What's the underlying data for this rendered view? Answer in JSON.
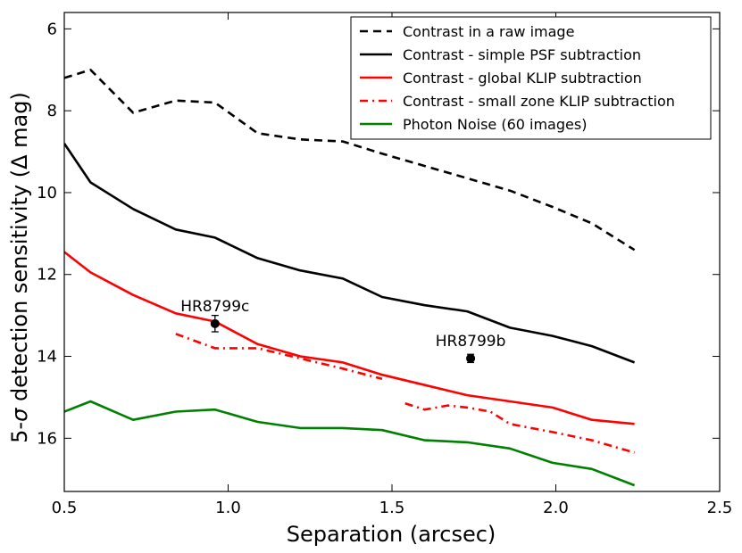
{
  "chart_data": {
    "type": "line",
    "title": "",
    "xlabel": "Separation (arcsec)",
    "ylabel_parts": [
      "5-",
      "σ",
      " detection sensitivity (",
      "Δ",
      " mag)"
    ],
    "xlim": [
      0.5,
      2.5
    ],
    "ylim": [
      17.3,
      5.6
    ],
    "y_inverted": true,
    "xticks": [
      0.5,
      1.0,
      1.5,
      2.0,
      2.5
    ],
    "xtick_labels": [
      "0.5",
      "1.0",
      "1.5",
      "2.0",
      "2.5"
    ],
    "yticks": [
      6,
      8,
      10,
      12,
      14,
      16
    ],
    "ytick_labels": [
      "6",
      "8",
      "10",
      "12",
      "14",
      "16"
    ],
    "grid": false,
    "legend_position": "top-right",
    "series": [
      {
        "name": "Contrast in a raw image",
        "color": "#000000",
        "style": "dashed",
        "segments": [
          {
            "x": [
              0.5,
              0.58,
              0.71,
              0.84,
              0.96,
              1.09,
              1.22,
              1.35,
              1.47,
              1.6,
              1.73,
              1.86,
              1.99,
              2.11,
              2.24
            ],
            "y": [
              7.2,
              7.0,
              8.05,
              7.75,
              7.8,
              8.55,
              8.7,
              8.75,
              9.05,
              9.35,
              9.65,
              9.95,
              10.35,
              10.75,
              11.4
            ]
          }
        ]
      },
      {
        "name": "Contrast - simple PSF subtraction",
        "color": "#000000",
        "style": "solid",
        "segments": [
          {
            "x": [
              0.5,
              0.58,
              0.71,
              0.84,
              0.96,
              1.09,
              1.22,
              1.35,
              1.47,
              1.6,
              1.73,
              1.86,
              1.99,
              2.11,
              2.24
            ],
            "y": [
              8.8,
              9.75,
              10.4,
              10.9,
              11.1,
              11.6,
              11.9,
              12.1,
              12.55,
              12.75,
              12.9,
              13.3,
              13.5,
              13.75,
              14.15
            ]
          }
        ]
      },
      {
        "name": "Contrast - global KLIP subtraction",
        "color": "#ff0000",
        "style": "solid",
        "segments": [
          {
            "x": [
              0.5,
              0.58,
              0.71,
              0.84,
              0.96,
              1.09,
              1.22,
              1.35,
              1.47,
              1.6,
              1.73,
              1.86,
              1.99,
              2.11,
              2.24
            ],
            "y": [
              11.45,
              11.95,
              12.5,
              12.95,
              13.15,
              13.7,
              14.0,
              14.15,
              14.45,
              14.7,
              14.95,
              15.1,
              15.25,
              15.55,
              15.65
            ]
          }
        ]
      },
      {
        "name": "Contrast - small zone KLIP subtraction",
        "color": "#ff0000",
        "style": "dashdot",
        "segments": [
          {
            "x": [
              0.84,
              0.96,
              1.09,
              1.22,
              1.35,
              1.47
            ],
            "y": [
              13.45,
              13.8,
              13.8,
              14.05,
              14.3,
              14.55
            ]
          },
          {
            "x": [
              1.54,
              1.6,
              1.67,
              1.73,
              1.8,
              1.86,
              1.99,
              2.11,
              2.24
            ],
            "y": [
              15.15,
              15.3,
              15.2,
              15.25,
              15.35,
              15.65,
              15.85,
              16.05,
              16.35
            ]
          }
        ]
      },
      {
        "name": "Photon Noise (60 images)",
        "color": "#008000",
        "style": "solid",
        "segments": [
          {
            "x": [
              0.5,
              0.58,
              0.71,
              0.84,
              0.96,
              1.09,
              1.22,
              1.35,
              1.47,
              1.6,
              1.73,
              1.86,
              1.99,
              2.11,
              2.24
            ],
            "y": [
              15.35,
              15.1,
              15.55,
              15.35,
              15.3,
              15.6,
              15.75,
              15.75,
              15.8,
              16.05,
              16.1,
              16.25,
              16.6,
              16.75,
              17.15
            ]
          }
        ]
      }
    ],
    "points": [
      {
        "name": "HR8799c",
        "x": 0.96,
        "y": 13.2,
        "yerr": 0.2
      },
      {
        "name": "HR8799b",
        "x": 1.74,
        "y": 14.05,
        "yerr": 0.1
      }
    ]
  }
}
